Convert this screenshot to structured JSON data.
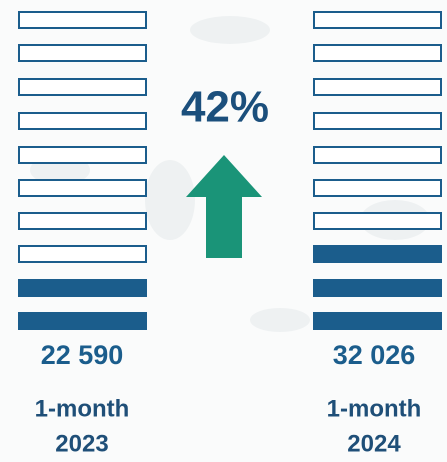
{
  "percent_change": "42%",
  "left": {
    "value": "22 590",
    "period": "1-month",
    "year": "2023"
  },
  "right": {
    "value": "32 026",
    "period": "1-month",
    "year": "2024"
  }
}
